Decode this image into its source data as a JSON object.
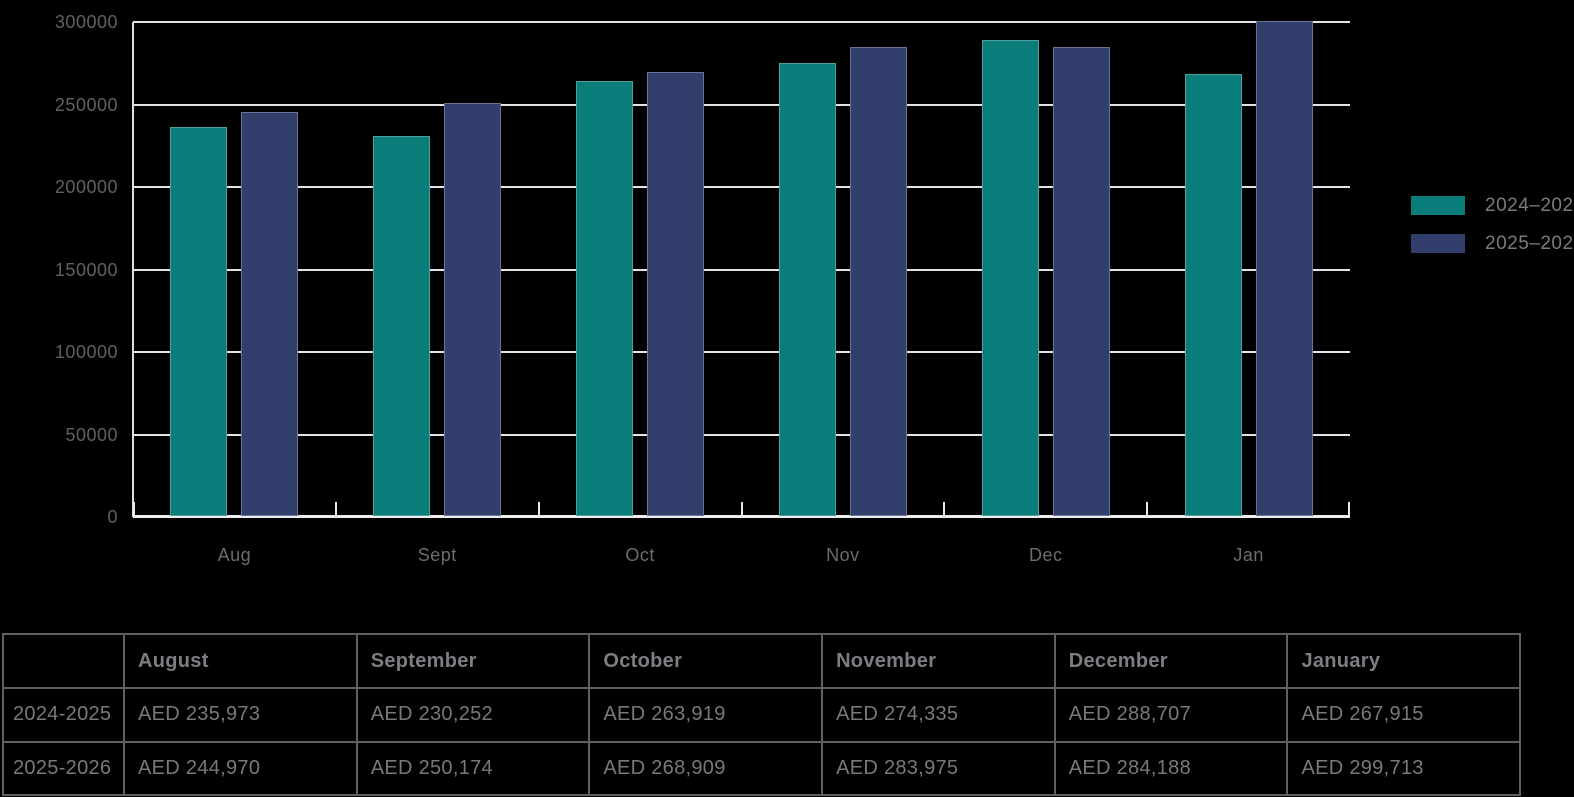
{
  "chart_data": {
    "type": "bar",
    "title": "",
    "xlabel": "",
    "ylabel": "",
    "categories": [
      "Aug",
      "Sept",
      "Oct",
      "Nov",
      "Dec",
      "Jan"
    ],
    "series": [
      {
        "name": "2024–2025",
        "color": "#0a7c7a",
        "values": [
          235973,
          230252,
          263919,
          274335,
          288707,
          267915
        ]
      },
      {
        "name": "2025–2026",
        "color": "#323f6c",
        "values": [
          244970,
          250174,
          268909,
          283975,
          284188,
          299713
        ]
      }
    ],
    "ylim": [
      0,
      300000
    ],
    "ytick_step": 50000,
    "ytick_labels": [
      "0",
      "50000",
      "100000",
      "150000",
      "200000",
      "250000",
      "300000"
    ],
    "grid": "horizontal",
    "legend_position": "right"
  },
  "colors": {
    "background": "#000000",
    "series_2024_2025": "#0a7c7a",
    "series_2025_2026": "#323f6c",
    "gridline": "#e3e3e5",
    "axis_text": "#5e6164",
    "legend_text": "#797c7f",
    "table_border": "#5e6063",
    "table_text": "#77797d"
  },
  "table": {
    "columns": [
      "",
      "August",
      "September",
      "October",
      "November",
      "December",
      "January"
    ],
    "rows": [
      {
        "label": "2024-2025",
        "values": [
          "AED 235,973",
          "AED 230,252",
          "AED 263,919",
          "AED 274,335",
          "AED 288,707",
          "AED 267,915"
        ]
      },
      {
        "label": "2025-2026",
        "values": [
          "AED 244,970",
          "AED 250,174",
          "AED 268,909",
          "AED 283,975",
          "AED 284,188",
          "AED 299,713"
        ]
      }
    ]
  }
}
